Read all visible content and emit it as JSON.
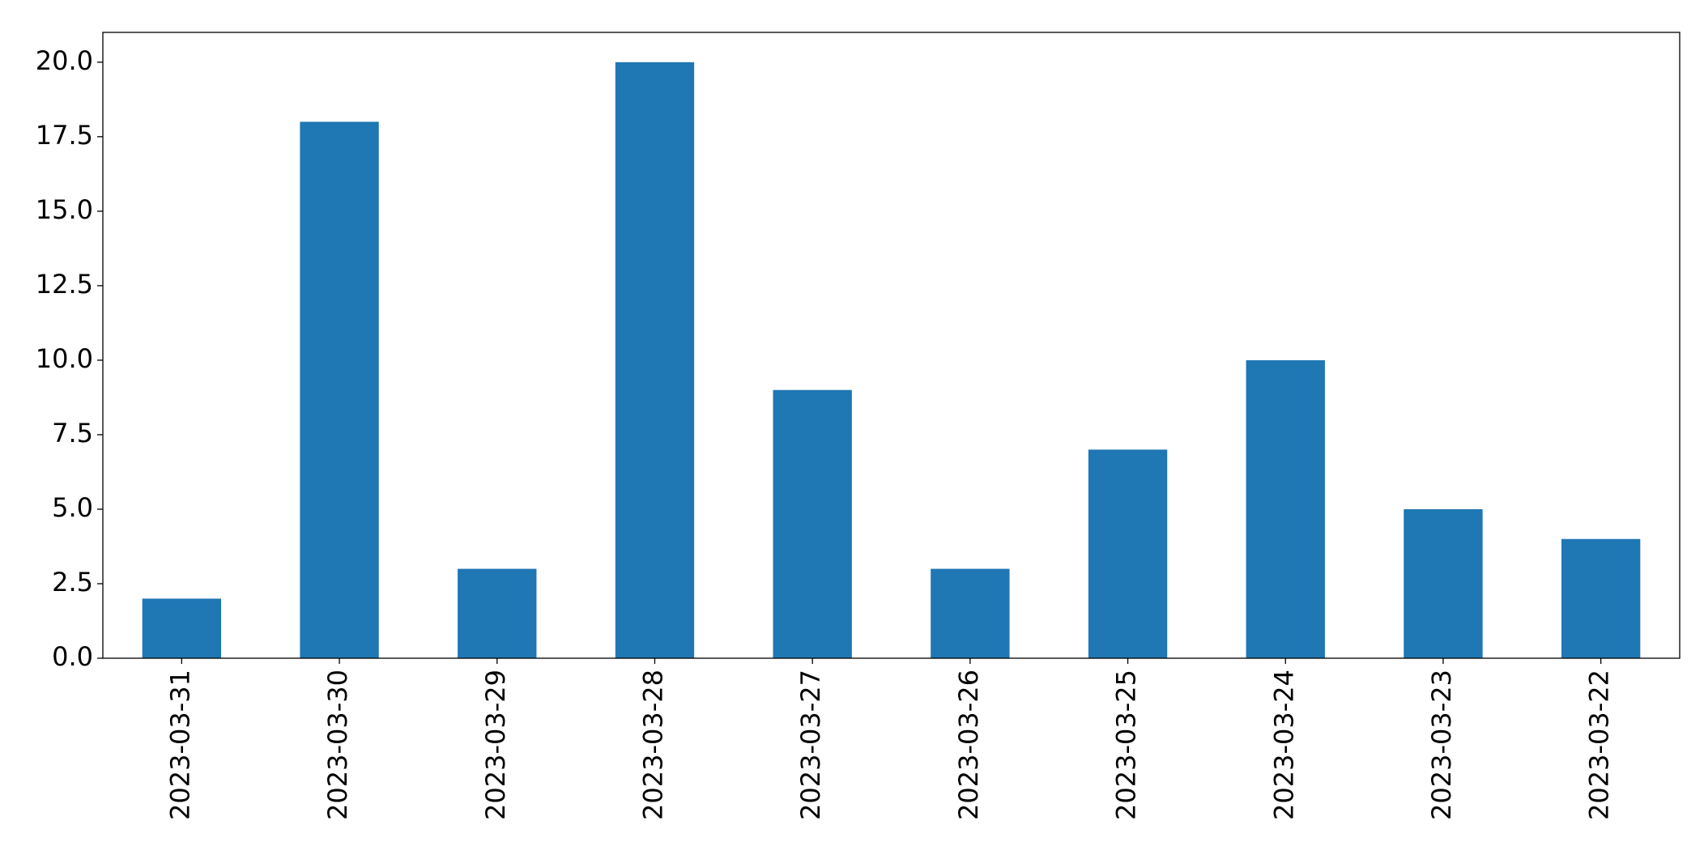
{
  "chart_data": {
    "type": "bar",
    "categories": [
      "2023-03-31",
      "2023-03-30",
      "2023-03-29",
      "2023-03-28",
      "2023-03-27",
      "2023-03-26",
      "2023-03-25",
      "2023-03-24",
      "2023-03-23",
      "2023-03-22"
    ],
    "values": [
      2,
      18,
      3,
      20,
      9,
      3,
      7,
      10,
      5,
      4
    ],
    "color": "#1f77b4",
    "ylim": [
      0,
      21
    ],
    "yticks": [
      {
        "value": 0,
        "label": "0.0"
      },
      2.5,
      {
        "value": 5,
        "label": "5.0"
      },
      7.5,
      {
        "value": 10,
        "label": "10.0"
      },
      12.5,
      {
        "value": 15,
        "label": "15.0"
      },
      17.5,
      {
        "value": 20,
        "label": "20.0"
      }
    ],
    "grid": false
  }
}
